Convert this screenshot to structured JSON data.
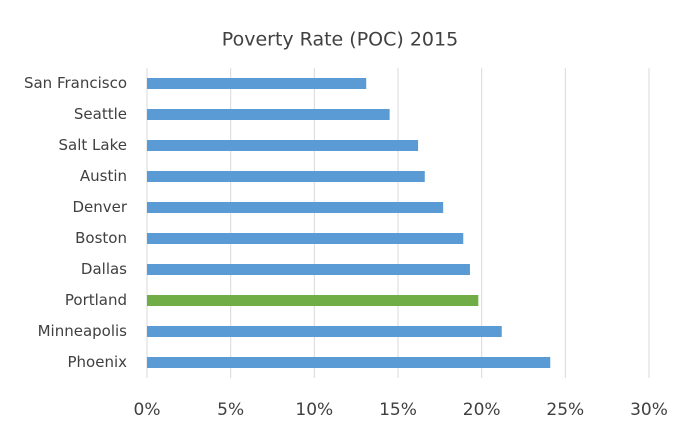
{
  "chart_data": {
    "type": "barh",
    "title": "Poverty Rate (POC) 2015",
    "categories": [
      "San Francisco",
      "Seattle",
      "Salt Lake",
      "Austin",
      "Denver",
      "Boston",
      "Dallas",
      "Portland",
      "Minneapolis",
      "Phoenix"
    ],
    "values": [
      13.1,
      14.5,
      16.2,
      16.6,
      17.7,
      18.9,
      19.3,
      19.8,
      21.2,
      24.1
    ],
    "colors": [
      "#5b9bd5",
      "#5b9bd5",
      "#5b9bd5",
      "#5b9bd5",
      "#5b9bd5",
      "#5b9bd5",
      "#5b9bd5",
      "#70ad47",
      "#5b9bd5",
      "#5b9bd5"
    ],
    "xlim": [
      0,
      30
    ],
    "xticks": [
      {
        "value": 0,
        "label": "0%"
      },
      {
        "value": 5,
        "label": "5%"
      },
      {
        "value": 10,
        "label": "10%"
      },
      {
        "value": 15,
        "label": "15%"
      },
      {
        "value": 20,
        "label": "20%"
      },
      {
        "value": 25,
        "label": "25%"
      },
      {
        "value": 30,
        "label": "30%"
      }
    ],
    "grid": true
  }
}
